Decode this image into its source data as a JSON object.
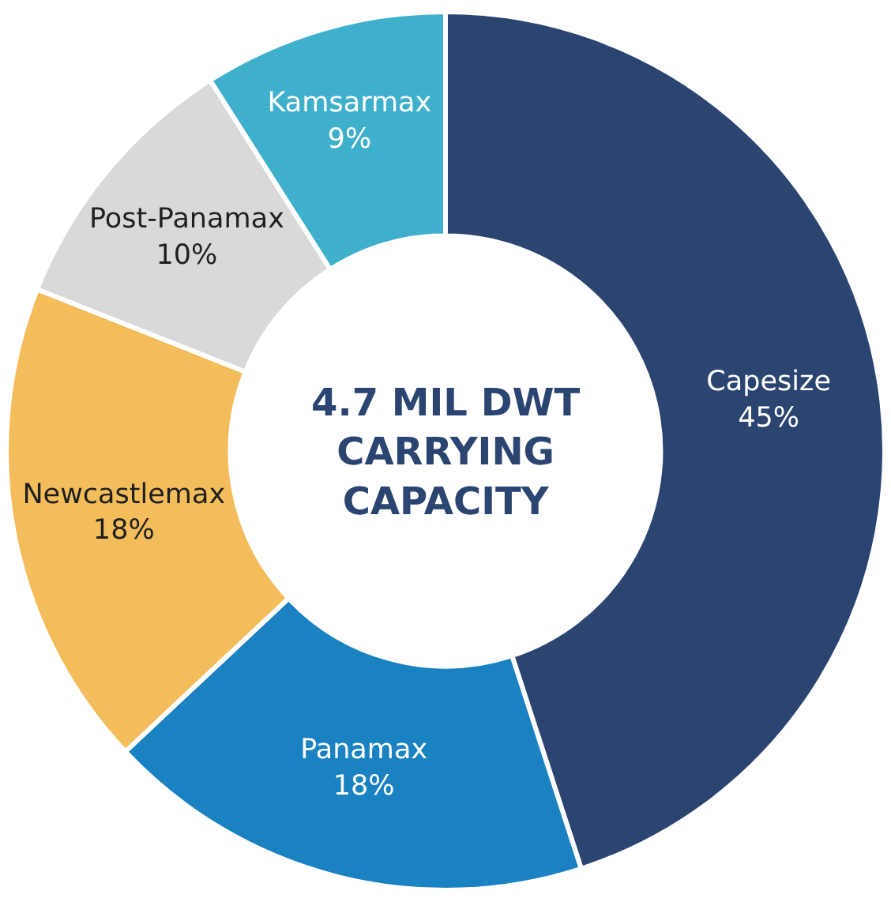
{
  "chart_data": {
    "type": "donut",
    "categories": [
      "Capesize",
      "Panamax",
      "Newcastlemax",
      "Post-Panamax",
      "Kamsarmax"
    ],
    "values": [
      45,
      18,
      18,
      10,
      9
    ],
    "value_labels": [
      "45%",
      "18%",
      "18%",
      "10%",
      "9%"
    ],
    "colors": [
      "#2b4570",
      "#1a82c0",
      "#f2bd5a",
      "#d9d9d9",
      "#3fb0cc"
    ],
    "annotations": [
      "4.7 MIL DWT\nCARRYING\nCAPACITY"
    ],
    "legend": false
  }
}
